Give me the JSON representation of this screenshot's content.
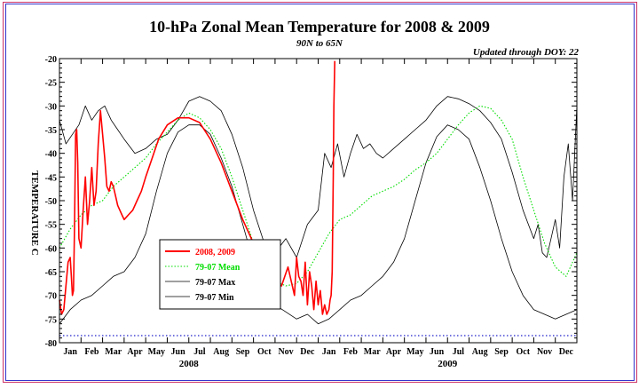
{
  "chart_data": {
    "type": "line",
    "title": "10-hPa Zonal Mean Temperature for 2008 & 2009",
    "subtitle": "90N to 65N",
    "update_note": "Updated through DOY:  22",
    "ylabel": "TEMPERATURE C",
    "ylim": [
      -80,
      -20
    ],
    "yticks": [
      -20,
      -25,
      -30,
      -35,
      -40,
      -45,
      -50,
      -55,
      -60,
      -65,
      -70,
      -75,
      -80
    ],
    "xlim": [
      0,
      24
    ],
    "months": [
      "Jan",
      "Feb",
      "Mar",
      "Apr",
      "May",
      "Jun",
      "Jul",
      "Aug",
      "Sep",
      "Oct",
      "Nov",
      "Dec",
      "Jan",
      "Feb",
      "Mar",
      "Apr",
      "May",
      "Jun",
      "Jul",
      "Aug",
      "Sep",
      "Oct",
      "Nov",
      "Dec"
    ],
    "years": [
      {
        "label": "2008",
        "x": 6
      },
      {
        "label": "2009",
        "x": 18
      }
    ],
    "reference_line": -78.5,
    "legend": [
      "2008, 2009",
      "79-07 Mean",
      "79-07 Max",
      "79-07 Min"
    ],
    "series": [
      {
        "name": "2008, 2009",
        "color": "#ff0000",
        "x": [
          0,
          0.1,
          0.2,
          0.3,
          0.4,
          0.5,
          0.55,
          0.6,
          0.65,
          0.7,
          0.75,
          0.8,
          0.85,
          0.9,
          1.0,
          1.1,
          1.2,
          1.3,
          1.4,
          1.5,
          1.6,
          1.7,
          1.8,
          1.9,
          2.0,
          2.1,
          2.2,
          2.3,
          2.4,
          2.5,
          2.6,
          2.7,
          2.8,
          2.9,
          3.0,
          3.2,
          3.4,
          3.6,
          3.8,
          4.0,
          4.3,
          4.6,
          5.0,
          5.5,
          6.0,
          6.5,
          7.0,
          7.5,
          8.0,
          8.5,
          9.0,
          9.5,
          10.0,
          10.3,
          10.6,
          10.9,
          11.0,
          11.1,
          11.2,
          11.3,
          11.4,
          11.5,
          11.6,
          11.7,
          11.8,
          11.9,
          12.0,
          12.1,
          12.2,
          12.3,
          12.4,
          12.5,
          12.55,
          12.6,
          12.65,
          12.7,
          12.73,
          12.77
        ],
        "values": [
          -71,
          -74,
          -73,
          -68,
          -63,
          -62,
          -66,
          -70,
          -69,
          -55,
          -36,
          -35,
          -42,
          -58,
          -60,
          -52,
          -45,
          -55,
          -50,
          -43,
          -51,
          -48,
          -38,
          -31,
          -36,
          -41,
          -47,
          -48,
          -46,
          -47,
          -49,
          -51,
          -52,
          -53,
          -54,
          -53,
          -52,
          -50,
          -48,
          -45,
          -41,
          -37,
          -34,
          -32.5,
          -32.5,
          -33.5,
          -37,
          -42,
          -48,
          -54,
          -59,
          -63,
          -67,
          -68,
          -64,
          -70,
          -62,
          -66,
          -67,
          -70,
          -63,
          -72,
          -65,
          -68,
          -73,
          -67,
          -72,
          -69,
          -74,
          -72,
          -74,
          -73,
          -71,
          -70,
          -65,
          -45,
          -30,
          -20.5
        ]
      },
      {
        "name": "79-07 Mean",
        "color": "#00dd00",
        "x": [
          0,
          0.5,
          1.0,
          1.5,
          2.0,
          2.5,
          3.0,
          3.5,
          4.0,
          4.5,
          5.0,
          5.5,
          6.0,
          6.5,
          7.0,
          7.5,
          8.0,
          8.5,
          9.0,
          9.5,
          10.0,
          10.5,
          11.0,
          11.5,
          12.0,
          12.5,
          13.0,
          13.5,
          14.0,
          14.5,
          15.0,
          15.5,
          16.0,
          16.5,
          17.0,
          17.5,
          18.0,
          18.5,
          19.0,
          19.5,
          20.0,
          20.5,
          21.0,
          21.5,
          22.0,
          22.5,
          23.0,
          23.5,
          24.0
        ],
        "values": [
          -60,
          -56,
          -53,
          -51,
          -50,
          -47,
          -45,
          -43,
          -41,
          -38,
          -35.5,
          -33,
          -31.5,
          -32.5,
          -35,
          -39,
          -45,
          -52,
          -59,
          -64,
          -67,
          -68,
          -67.5,
          -65,
          -61,
          -57,
          -54,
          -53,
          -51,
          -49,
          -48,
          -47,
          -45.5,
          -43.5,
          -42,
          -40,
          -37,
          -34,
          -31.5,
          -30,
          -30.5,
          -33,
          -37,
          -45,
          -52,
          -59,
          -64,
          -66,
          -61
        ]
      },
      {
        "name": "79-07 Max",
        "color": "#000000",
        "x": [
          0,
          0.3,
          0.6,
          0.9,
          1.2,
          1.5,
          1.8,
          2.1,
          2.4,
          2.7,
          3.0,
          3.5,
          4.0,
          4.5,
          5.0,
          5.5,
          6.0,
          6.5,
          7.0,
          7.5,
          8.0,
          8.5,
          9.0,
          9.5,
          10.0,
          10.5,
          11.0,
          11.5,
          12.0,
          12.3,
          12.6,
          12.9,
          13.2,
          13.5,
          13.8,
          14.1,
          14.4,
          14.7,
          15.0,
          15.5,
          16.0,
          16.5,
          17.0,
          17.5,
          18.0,
          18.5,
          19.0,
          19.5,
          20.0,
          20.5,
          21.0,
          21.5,
          22.0,
          22.2,
          22.4,
          22.6,
          22.8,
          23.0,
          23.2,
          23.4,
          23.6,
          23.8,
          24.0
        ],
        "values": [
          -33,
          -38,
          -36,
          -34,
          -30,
          -33,
          -31,
          -30,
          -33,
          -35,
          -37,
          -40,
          -39,
          -37,
          -36,
          -33,
          -29,
          -28,
          -29,
          -31,
          -36,
          -43,
          -52,
          -59,
          -61,
          -58,
          -62,
          -55,
          -52,
          -40,
          -43,
          -38,
          -45,
          -40,
          -36,
          -39,
          -38,
          -40,
          -41,
          -39,
          -37,
          -35,
          -33,
          -30,
          -28,
          -28.5,
          -29.5,
          -31,
          -33.5,
          -37,
          -44,
          -52,
          -58,
          -55,
          -61,
          -62,
          -58,
          -54,
          -60,
          -45,
          -38,
          -50,
          -30
        ]
      },
      {
        "name": "79-07 Min",
        "color": "#000000",
        "x": [
          0,
          0.5,
          1.0,
          1.5,
          2.0,
          2.5,
          3.0,
          3.5,
          4.0,
          4.5,
          5.0,
          5.5,
          6.0,
          6.5,
          7.0,
          7.5,
          8.0,
          8.5,
          9.0,
          9.5,
          10.0,
          10.5,
          11.0,
          11.5,
          12.0,
          12.5,
          13.0,
          13.5,
          14.0,
          14.5,
          15.0,
          15.5,
          16.0,
          16.5,
          17.0,
          17.5,
          18.0,
          18.5,
          19.0,
          19.5,
          20.0,
          20.5,
          21.0,
          21.5,
          22.0,
          22.5,
          23.0,
          23.5,
          24.0
        ],
        "values": [
          -76,
          -73,
          -71,
          -70,
          -68,
          -66,
          -65,
          -62,
          -57,
          -48,
          -40,
          -35.5,
          -34,
          -34,
          -36,
          -41,
          -47,
          -55,
          -63,
          -69,
          -72,
          -73.5,
          -75,
          -74,
          -76,
          -75,
          -73,
          -71,
          -70,
          -68,
          -66,
          -63,
          -58,
          -50,
          -42,
          -36.5,
          -34,
          -35,
          -37,
          -43,
          -50,
          -58,
          -65,
          -70,
          -73,
          -74,
          -75,
          -74,
          -73
        ]
      }
    ]
  }
}
